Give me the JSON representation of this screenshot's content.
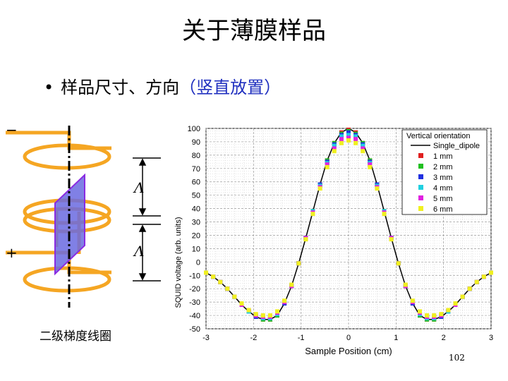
{
  "slide": {
    "title": "关于薄膜样品",
    "bullet_prefix": "样品尺寸、方向",
    "bullet_highlight": "（竖直放置）",
    "coil_caption": "二级梯度线圈",
    "page_number": "102"
  },
  "diagram": {
    "minus_sign": "−",
    "plus_sign": "+",
    "spacing_label_top": "Λ",
    "spacing_label_bottom": "Λ",
    "colors": {
      "coil": "#f5a623",
      "sample": "#6a6ae0",
      "sample_edge": "#8a2be2"
    }
  },
  "chart_data": {
    "type": "scatter",
    "xlabel": "Sample Position  (cm)",
    "ylabel": "SQUID voltage (arb. units)",
    "xlim": [
      -3,
      3
    ],
    "ylim": [
      -50,
      100
    ],
    "xticks": [
      "-3",
      "-2",
      "-1",
      "0",
      "1",
      "2",
      "3"
    ],
    "yticks": [
      "100",
      "90",
      "80",
      "70",
      "60",
      "50",
      "40",
      "30",
      "20",
      "10",
      "0",
      "-10",
      "-20",
      "-30",
      "-40",
      "-50"
    ],
    "grid": true,
    "legend_title": "Vertical orientation",
    "legend_position": "top-right",
    "x": [
      -3.0,
      -2.85,
      -2.7,
      -2.55,
      -2.4,
      -2.25,
      -2.1,
      -1.95,
      -1.8,
      -1.65,
      -1.5,
      -1.35,
      -1.2,
      -1.05,
      -0.9,
      -0.75,
      -0.6,
      -0.45,
      -0.3,
      -0.15,
      0,
      0.15,
      0.3,
      0.45,
      0.6,
      0.75,
      0.9,
      1.05,
      1.2,
      1.35,
      1.5,
      1.65,
      1.8,
      1.95,
      2.1,
      2.25,
      2.4,
      2.55,
      2.7,
      2.85,
      3.0
    ],
    "series": [
      {
        "name": "Single_dipole",
        "color": "#000000",
        "style": "line",
        "values": [
          -8,
          -11,
          -15,
          -20,
          -26,
          -32,
          -37,
          -41,
          -43,
          -43,
          -40,
          -31,
          -18,
          -1,
          18,
          38,
          58,
          76,
          89,
          97,
          100,
          97,
          89,
          76,
          58,
          38,
          18,
          -1,
          -18,
          -31,
          -40,
          -43,
          -43,
          -41,
          -37,
          -32,
          -26,
          -20,
          -15,
          -11,
          -8
        ]
      },
      {
        "name": "1 mm",
        "color": "#e02020",
        "style": "points",
        "values": [
          -8,
          -11,
          -15,
          -20,
          -26,
          -32,
          -37,
          -41,
          -43,
          -43,
          -40,
          -31,
          -18,
          -1,
          18,
          38,
          58,
          76,
          89,
          97,
          99,
          97,
          89,
          76,
          58,
          38,
          18,
          -1,
          -18,
          -31,
          -40,
          -43,
          -43,
          -41,
          -37,
          -32,
          -26,
          -20,
          -15,
          -11,
          -8
        ]
      },
      {
        "name": "2 mm",
        "color": "#20c020",
        "style": "points",
        "values": [
          -8,
          -11,
          -15,
          -20,
          -26,
          -32,
          -37,
          -41,
          -43,
          -43,
          -40,
          -31,
          -18,
          -1,
          18,
          38,
          58,
          76,
          89,
          96,
          98,
          96,
          89,
          76,
          58,
          38,
          18,
          -1,
          -18,
          -31,
          -40,
          -43,
          -43,
          -41,
          -37,
          -32,
          -26,
          -20,
          -15,
          -11,
          -8
        ]
      },
      {
        "name": "3 mm",
        "color": "#2030e0",
        "style": "points",
        "values": [
          -8,
          -11,
          -15,
          -20,
          -26,
          -32,
          -37,
          -41,
          -42,
          -42,
          -39,
          -31,
          -18,
          -1,
          18,
          38,
          58,
          75,
          88,
          95,
          97,
          95,
          88,
          75,
          58,
          38,
          18,
          -1,
          -18,
          -31,
          -39,
          -42,
          -42,
          -41,
          -37,
          -32,
          -26,
          -20,
          -15,
          -11,
          -8
        ]
      },
      {
        "name": "4 mm",
        "color": "#20d0e0",
        "style": "points",
        "values": [
          -8,
          -11,
          -15,
          -20,
          -26,
          -32,
          -37,
          -40,
          -42,
          -42,
          -39,
          -30,
          -18,
          -1,
          18,
          38,
          57,
          74,
          87,
          94,
          95,
          94,
          87,
          74,
          57,
          38,
          18,
          -1,
          -18,
          -30,
          -39,
          -42,
          -42,
          -40,
          -37,
          -32,
          -26,
          -20,
          -15,
          -11,
          -8
        ]
      },
      {
        "name": "5 mm",
        "color": "#e020e0",
        "style": "points",
        "values": [
          -8,
          -11,
          -15,
          -20,
          -26,
          -32,
          -36,
          -40,
          -41,
          -41,
          -38,
          -30,
          -18,
          -1,
          18,
          37,
          56,
          73,
          85,
          92,
          93,
          92,
          85,
          73,
          56,
          37,
          18,
          -1,
          -18,
          -30,
          -38,
          -41,
          -41,
          -40,
          -36,
          -32,
          -26,
          -20,
          -15,
          -11,
          -8
        ]
      },
      {
        "name": "6 mm",
        "color": "#f0f020",
        "style": "points",
        "values": [
          -8,
          -11,
          -15,
          -20,
          -26,
          -31,
          -36,
          -39,
          -40,
          -40,
          -37,
          -29,
          -17,
          -1,
          17,
          36,
          55,
          71,
          83,
          89,
          91,
          89,
          83,
          71,
          55,
          36,
          17,
          -1,
          -17,
          -29,
          -37,
          -40,
          -40,
          -39,
          -36,
          -31,
          -26,
          -20,
          -15,
          -11,
          -8
        ]
      }
    ]
  }
}
